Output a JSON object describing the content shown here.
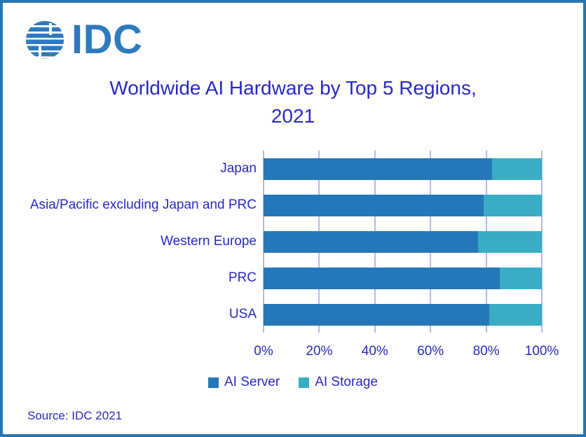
{
  "page": {
    "border_color": "#2576B3",
    "background_color": "#FFFFFF",
    "text_color": "#2929C0"
  },
  "logo": {
    "text": "IDC",
    "color": "#2E7ABD"
  },
  "title": {
    "line1": "Worldwide AI Hardware by Top 5 Regions,",
    "line2": "2021"
  },
  "source": {
    "text": "Source: IDC 2021"
  },
  "chart_data": {
    "type": "bar",
    "orientation": "horizontal",
    "stacked": true,
    "title": "Worldwide AI Hardware by Top 5 Regions, 2021",
    "categories": [
      "Japan",
      "Asia/Pacific excluding Japan and PRC",
      "Western Europe",
      "PRC",
      "USA"
    ],
    "series": [
      {
        "name": "AI Server",
        "color": "#2577B9",
        "values": [
          82,
          79,
          77,
          85,
          81
        ]
      },
      {
        "name": "AI Storage",
        "color": "#39ADC4",
        "values": [
          18,
          21,
          23,
          15,
          19
        ]
      }
    ],
    "xlim": [
      0,
      100
    ],
    "x_ticks": [
      "0%",
      "20%",
      "40%",
      "60%",
      "80%",
      "100%"
    ],
    "x_tick_values": [
      0,
      20,
      40,
      60,
      80,
      100
    ],
    "grid": true,
    "gridline_color": "#B7B7EC",
    "legend_position": "bottom"
  }
}
